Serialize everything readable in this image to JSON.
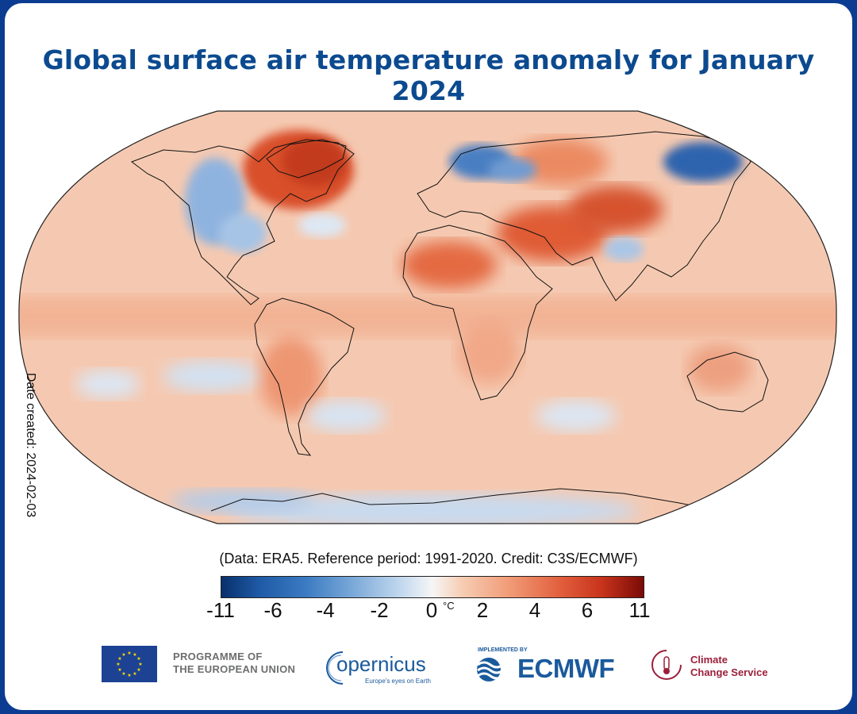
{
  "title": "Global surface air temperature anomaly for January 2024",
  "date_created": "Date created: 2024-02-03",
  "credit": "(Data: ERA5.  Reference period: 1991-2020.  Credit: C3S/ECMWF)",
  "colorbar": {
    "unit": "°C",
    "ticks": [
      "-11",
      "-6",
      "-4",
      "-2",
      "0",
      "2",
      "4",
      "6",
      "11"
    ],
    "colors": [
      "#08306b",
      "#3b7bc2",
      "#c5daef",
      "#f6f6f6",
      "#f19c78",
      "#c8341c",
      "#7a0b06"
    ]
  },
  "map": {
    "projection": "Robinson",
    "ocean_base_color": "#f6c8b0",
    "anomaly_regions": [
      {
        "name": "Canadian Arctic",
        "sign": "warm",
        "color": "#d9502c"
      },
      {
        "name": "Western North America",
        "sign": "cold",
        "color": "#8fb3df"
      },
      {
        "name": "Scandinavia",
        "sign": "cold",
        "color": "#4a7fc2"
      },
      {
        "name": "Eastern Siberia",
        "sign": "cold",
        "color": "#2f63ad"
      },
      {
        "name": "North Africa / Middle East",
        "sign": "warm",
        "color": "#e46a42"
      },
      {
        "name": "Central Asia",
        "sign": "warm",
        "color": "#d6532e"
      },
      {
        "name": "Antarctica",
        "sign": "cold",
        "color": "#9dbde2"
      }
    ]
  },
  "footer": {
    "eu_line1": "PROGRAMME OF",
    "eu_line2": "THE EUROPEAN UNION",
    "copernicus": "opernicus",
    "copernicus_tagline": "Europe's eyes on Earth",
    "implemented_by": "IMPLEMENTED BY",
    "ecmwf": "ECMWF",
    "ccs_line1": "Climate",
    "ccs_line2": "Change Service"
  }
}
